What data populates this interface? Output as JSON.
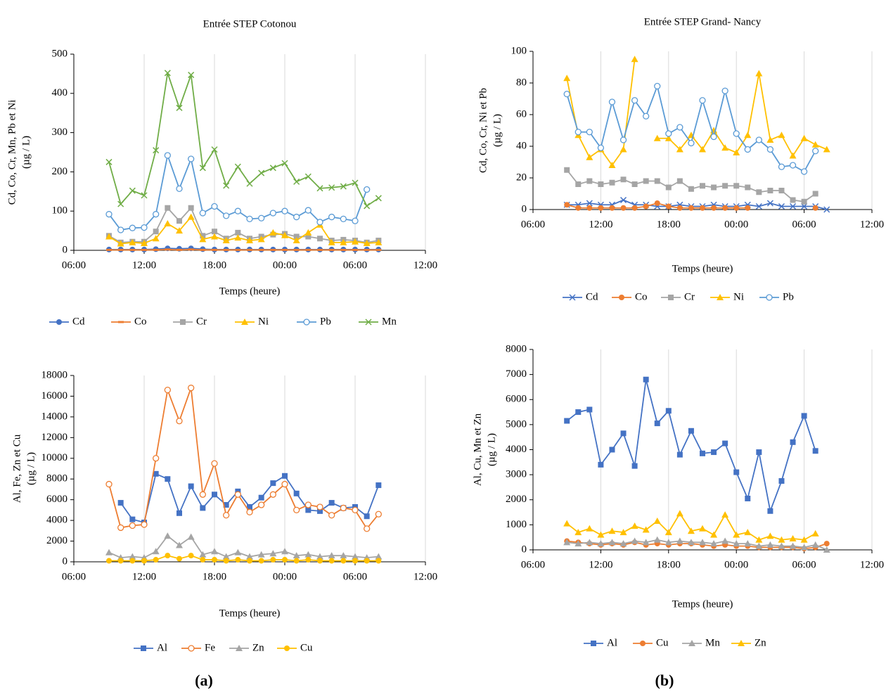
{
  "chart_data": [
    {
      "type": "line",
      "title": "Entrée  STEP Cotonou",
      "xlabel": "Temps (heure)",
      "ylabel": [
        "Cd, Co, Cr, Mn, Pb et Ni",
        "(µg / L)"
      ],
      "x": [
        9,
        10,
        11,
        12,
        13,
        14,
        15,
        16,
        17,
        18,
        19,
        20,
        21,
        22,
        23,
        24,
        25,
        26,
        27,
        28,
        29,
        30,
        31,
        32
      ],
      "xlim": [
        6,
        36
      ],
      "xticks": [
        {
          "value": 6,
          "label": "06:00"
        },
        {
          "value": 12,
          "label": "12:00"
        },
        {
          "value": 18,
          "label": "18:00"
        },
        {
          "value": 24,
          "label": "00:00"
        },
        {
          "value": 30,
          "label": "06:00"
        },
        {
          "value": 36,
          "label": "12:00"
        }
      ],
      "ylim": [
        0,
        500
      ],
      "yticks": [
        0,
        100,
        200,
        300,
        400,
        500
      ],
      "grid": "x",
      "legend": "bottom",
      "series": [
        {
          "name": "Cd",
          "color": "#4472c4",
          "marker": "circle",
          "values": [
            2,
            2,
            2,
            2,
            3,
            5,
            4,
            5,
            3,
            2,
            2,
            2,
            2,
            2,
            2,
            2,
            2,
            2,
            2,
            2,
            2,
            2,
            2,
            2
          ]
        },
        {
          "name": "Co",
          "color": "#ed7d31",
          "marker": "dash",
          "values": [
            1,
            1,
            1,
            1,
            1,
            2,
            1,
            2,
            1,
            1,
            1,
            1,
            1,
            1,
            1,
            1,
            1,
            1,
            1,
            1,
            1,
            1,
            1,
            1
          ]
        },
        {
          "name": "Cr",
          "color": "#a5a5a5",
          "marker": "square",
          "values": [
            37,
            20,
            22,
            22,
            48,
            108,
            75,
            108,
            37,
            48,
            30,
            45,
            30,
            35,
            40,
            42,
            35,
            35,
            30,
            25,
            27,
            25,
            20,
            25
          ]
        },
        {
          "name": "Ni",
          "color": "#ffc000",
          "marker": "triangle",
          "values": [
            35,
            17,
            20,
            18,
            30,
            68,
            50,
            85,
            28,
            35,
            25,
            32,
            25,
            28,
            45,
            38,
            25,
            45,
            65,
            20,
            20,
            22,
            18,
            20
          ]
        },
        {
          "name": "Pb",
          "color": "#5b9bd5",
          "marker": "open-circle",
          "values": [
            92,
            52,
            57,
            58,
            92,
            242,
            157,
            233,
            95,
            112,
            88,
            100,
            80,
            82,
            95,
            100,
            85,
            102,
            72,
            85,
            80,
            75,
            155,
            null
          ]
        },
        {
          "name": "Mn",
          "color": "#70ad47",
          "marker": "x",
          "values": [
            225,
            118,
            152,
            140,
            255,
            452,
            363,
            447,
            210,
            257,
            165,
            213,
            170,
            197,
            210,
            222,
            175,
            188,
            158,
            160,
            163,
            172,
            113,
            133
          ]
        }
      ]
    },
    {
      "type": "line",
      "title": "Entrée  STEP Grand- Nancy",
      "xlabel": "Temps (heure)",
      "ylabel": [
        "Cd, Co, Cr, Ni et Pb",
        "(µg / L)"
      ],
      "x": [
        9,
        10,
        11,
        12,
        13,
        14,
        15,
        16,
        17,
        18,
        19,
        20,
        21,
        22,
        23,
        24,
        25,
        26,
        27,
        28,
        29,
        30,
        31,
        32
      ],
      "xlim": [
        6,
        36
      ],
      "xticks": [
        {
          "value": 6,
          "label": "06:00"
        },
        {
          "value": 12,
          "label": "12:00"
        },
        {
          "value": 18,
          "label": "18:00"
        },
        {
          "value": 24,
          "label": "00:00"
        },
        {
          "value": 30,
          "label": "06:00"
        },
        {
          "value": 36,
          "label": "12:00"
        }
      ],
      "ylim": [
        0,
        100
      ],
      "yticks": [
        0,
        20,
        40,
        60,
        80,
        100
      ],
      "grid": "x",
      "legend": "bottom",
      "series": [
        {
          "name": "Cd",
          "color": "#4472c4",
          "marker": "x",
          "values": [
            3,
            3,
            4,
            3,
            3,
            6,
            3,
            3,
            2,
            2,
            3,
            2,
            2,
            3,
            2,
            2,
            3,
            2,
            4,
            2,
            2,
            2,
            2,
            0
          ]
        },
        {
          "name": "Co",
          "color": "#ed7d31",
          "marker": "circle",
          "values": [
            3,
            1,
            1,
            1,
            1,
            1,
            1,
            2,
            4,
            2,
            1,
            1,
            1,
            1,
            1,
            1,
            1,
            null,
            null,
            null,
            null,
            null,
            1,
            null
          ]
        },
        {
          "name": "Cr",
          "color": "#a5a5a5",
          "marker": "square",
          "values": [
            25,
            16,
            18,
            16,
            17,
            19,
            16,
            18,
            18,
            14,
            18,
            13,
            15,
            14,
            15,
            15,
            14,
            11,
            12,
            12,
            6,
            5,
            10,
            null
          ]
        },
        {
          "name": "Ni",
          "color": "#ffc000",
          "marker": "triangle",
          "values": [
            83,
            47,
            33,
            38,
            28,
            38,
            95,
            null,
            45,
            45,
            38,
            47,
            38,
            50,
            39,
            36,
            47,
            86,
            44,
            47,
            34,
            45,
            41,
            38
          ]
        },
        {
          "name": "Pb",
          "color": "#5b9bd5",
          "marker": "open-circle",
          "values": [
            73,
            49,
            49,
            39,
            68,
            44,
            69,
            59,
            78,
            48,
            52,
            42,
            69,
            46,
            75,
            48,
            38,
            44,
            38,
            27,
            28,
            24,
            37,
            null
          ]
        }
      ]
    },
    {
      "type": "line",
      "xlabel": "Temps (heure)",
      "ylabel": [
        "Al, Fe, Zn et Cu",
        "(µg / L)"
      ],
      "x": [
        9,
        10,
        11,
        12,
        13,
        14,
        15,
        16,
        17,
        18,
        19,
        20,
        21,
        22,
        23,
        24,
        25,
        26,
        27,
        28,
        29,
        30,
        31,
        32
      ],
      "xlim": [
        6,
        36
      ],
      "xticks": [
        {
          "value": 6,
          "label": "06:00"
        },
        {
          "value": 12,
          "label": "12:00"
        },
        {
          "value": 18,
          "label": "18:00"
        },
        {
          "value": 24,
          "label": "00:00"
        },
        {
          "value": 30,
          "label": "06:00"
        },
        {
          "value": 36,
          "label": "12:00"
        }
      ],
      "ylim": [
        0,
        18000
      ],
      "yticks": [
        0,
        2000,
        4000,
        6000,
        8000,
        10000,
        12000,
        14000,
        16000,
        18000
      ],
      "grid": "x",
      "legend": "bottom",
      "series": [
        {
          "name": "Al",
          "color": "#4472c4",
          "marker": "square",
          "values": [
            null,
            5700,
            4100,
            3800,
            8500,
            8000,
            4700,
            7300,
            5200,
            6500,
            5500,
            6800,
            5300,
            6200,
            7600,
            8300,
            6600,
            5000,
            4900,
            5700,
            5200,
            5300,
            4400,
            7400
          ]
        },
        {
          "name": "Fe",
          "color": "#ed7d31",
          "marker": "open-circle",
          "values": [
            7500,
            3300,
            3500,
            3600,
            10000,
            16600,
            13600,
            16800,
            6500,
            9500,
            4500,
            6500,
            4800,
            5500,
            6500,
            7500,
            5000,
            5500,
            5300,
            4500,
            5200,
            5000,
            3200,
            4600
          ]
        },
        {
          "name": "Zn",
          "color": "#a5a5a5",
          "marker": "triangle",
          "values": [
            900,
            400,
            500,
            400,
            1000,
            2500,
            1600,
            2400,
            700,
            1000,
            500,
            900,
            500,
            700,
            800,
            1000,
            600,
            700,
            500,
            600,
            600,
            500,
            400,
            500
          ]
        },
        {
          "name": "Cu",
          "color": "#ffc000",
          "marker": "circle",
          "values": [
            100,
            100,
            100,
            100,
            200,
            600,
            300,
            600,
            200,
            200,
            100,
            200,
            100,
            100,
            200,
            200,
            100,
            200,
            100,
            100,
            100,
            100,
            100,
            100
          ]
        }
      ]
    },
    {
      "type": "line",
      "xlabel": "Temps (heure)",
      "ylabel": [
        "Al, Cu, Mn et Zn",
        "(µg / L)"
      ],
      "x": [
        9,
        10,
        11,
        12,
        13,
        14,
        15,
        16,
        17,
        18,
        19,
        20,
        21,
        22,
        23,
        24,
        25,
        26,
        27,
        28,
        29,
        30,
        31,
        32
      ],
      "xlim": [
        6,
        36
      ],
      "xticks": [
        {
          "value": 6,
          "label": "06:00"
        },
        {
          "value": 12,
          "label": "12:00"
        },
        {
          "value": 18,
          "label": "18:00"
        },
        {
          "value": 24,
          "label": "00:00"
        },
        {
          "value": 30,
          "label": "06:00"
        },
        {
          "value": 36,
          "label": "12:00"
        }
      ],
      "ylim": [
        0,
        8000
      ],
      "yticks": [
        0,
        1000,
        2000,
        3000,
        4000,
        5000,
        6000,
        7000,
        8000
      ],
      "grid": "x",
      "legend": "bottom",
      "series": [
        {
          "name": "Al",
          "color": "#4472c4",
          "marker": "square",
          "values": [
            5150,
            5500,
            5600,
            3400,
            4000,
            4650,
            3350,
            6800,
            5050,
            5550,
            3800,
            4750,
            3850,
            3900,
            4250,
            3100,
            2050,
            3900,
            1550,
            2750,
            4300,
            5350,
            3950,
            null
          ]
        },
        {
          "name": "Cu",
          "color": "#ed7d31",
          "marker": "circle",
          "values": [
            350,
            300,
            250,
            200,
            250,
            200,
            300,
            200,
            250,
            200,
            250,
            250,
            200,
            150,
            200,
            150,
            150,
            100,
            100,
            100,
            100,
            50,
            100,
            250
          ]
        },
        {
          "name": "Mn",
          "color": "#a5a5a5",
          "marker": "triangle",
          "values": [
            300,
            250,
            300,
            250,
            300,
            250,
            350,
            300,
            400,
            300,
            350,
            300,
            300,
            250,
            350,
            250,
            250,
            150,
            200,
            150,
            150,
            100,
            200,
            0
          ]
        },
        {
          "name": "Zn",
          "color": "#ffc000",
          "marker": "triangle",
          "values": [
            1050,
            700,
            850,
            600,
            750,
            700,
            950,
            800,
            1150,
            700,
            1450,
            750,
            850,
            600,
            1400,
            600,
            700,
            400,
            550,
            400,
            450,
            400,
            650,
            null
          ]
        }
      ]
    }
  ],
  "captions": [
    "(a)",
    "(b)"
  ]
}
